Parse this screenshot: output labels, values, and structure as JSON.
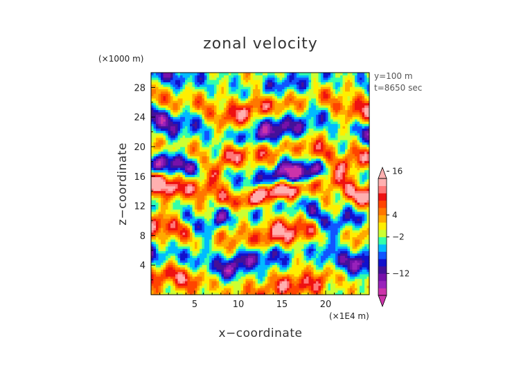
{
  "chart_data": {
    "type": "heatmap",
    "title": "zonal velocity",
    "xlabel": "x−coordinate",
    "ylabel": "z−coordinate",
    "x_unit": "(×1E4 m)",
    "y_unit": "(×1000 m)",
    "xlim": [
      0,
      25
    ],
    "ylim": [
      0,
      30
    ],
    "x_ticks": [
      5,
      10,
      15,
      20
    ],
    "y_ticks": [
      4,
      8,
      12,
      16,
      20,
      24,
      28
    ],
    "annotations": [
      "y=100 m",
      "t=8650 sec"
    ],
    "colorbar": {
      "tick_labels": [
        "16",
        "4",
        "−2",
        "−12"
      ],
      "tick_values": [
        16,
        4,
        -2,
        -12
      ],
      "levels": [
        -18,
        -16,
        -14,
        -12,
        -10,
        -8,
        -6,
        -4,
        -2,
        0,
        2,
        4,
        6,
        8,
        10,
        12,
        14,
        16,
        18
      ],
      "colors": [
        "#cc33aa",
        "#9922bb",
        "#7711aa",
        "#441199",
        "#1111cc",
        "#1155ff",
        "#00bbff",
        "#33ffaa",
        "#ccff33",
        "#ffee00",
        "#ffaa00",
        "#ff7700",
        "#ff4400",
        "#ee1111",
        "#ff7777",
        "#ffb0b0"
      ],
      "extend": "both"
    },
    "field": {
      "description_units": "m/s",
      "bands": [
        {
          "z": 28.5,
          "amp": -8,
          "width": 1.6,
          "phase": 0.5
        },
        {
          "z": 25.5,
          "amp": 10,
          "width": 1.8,
          "phase": 1.7
        },
        {
          "z": 22.5,
          "amp": -13,
          "width": 1.9,
          "phase": 0.9
        },
        {
          "z": 19.0,
          "amp": 13,
          "width": 1.7,
          "phase": 2.4
        },
        {
          "z": 16.8,
          "amp": -16,
          "width": 1.6,
          "phase": 0.2
        },
        {
          "z": 14.0,
          "amp": 17,
          "width": 1.4,
          "phase": 1.1
        },
        {
          "z": 11.0,
          "amp": -12,
          "width": 1.6,
          "phase": 2.8
        },
        {
          "z": 8.5,
          "amp": 11,
          "width": 1.9,
          "phase": 0.6
        },
        {
          "z": 5.0,
          "amp": -13,
          "width": 1.8,
          "phase": 1.9
        },
        {
          "z": 1.5,
          "amp": 9,
          "width": 1.5,
          "phase": 0.3
        }
      ]
    }
  }
}
